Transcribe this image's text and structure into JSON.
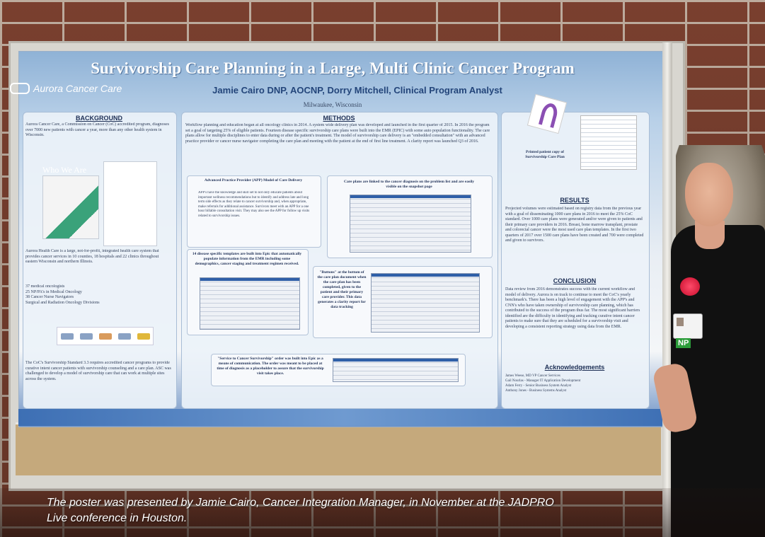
{
  "poster": {
    "title": "Survivorship Care Planning in a Large, Multi Clinic Cancer Program",
    "logo": "Aurora Cancer Care",
    "authors": "Jamie Cairo DNP, AOCNP, Dorry Mitchell, Clinical Program Analyst",
    "location": "Milwaukee, Wisconsin",
    "background": {
      "heading": "BACKGROUND",
      "intro": "Aurora Cancer Care, a Commission on Cancer (CoC) accredited program, diagnoses over 7000 new patients with cancer a year, more than any other health system in Wisconsin.",
      "who_we_are": "Who We Are",
      "health_care": "Aurora Health Care is a large, not-for-profit, integrated health care system that provides cancer services in 10 counties, 18 hospitals and 22 clinics throughout eastern Wisconsin and northern Illinois.",
      "bullets": [
        "37 medical oncologists",
        "25 NP/PA's in Medical Oncology",
        "38 Cancer Nurse Navigators",
        "Surgical and Radiation Oncology Divisions"
      ],
      "standard": "The CoC's Survivorship Standard 3.3 requires accredited cancer programs to provide curative intent cancer patients with survivorship counseling and a care plan. ASC was challenged to develop a model of survivorship care that can work at multiple sites across the system."
    },
    "methods": {
      "heading": "METHODS",
      "body": "Workflow planning and education began at all oncology clinics in 2014. A system wide delivery plan was developed and launched in the first quarter of 2015. In 2016 the program set a goal of targeting 25% of eligible patients. Fourteen disease specific survivorship care plans were built into the EMR (EPIC) with some auto population functionality. The care plans allow for multiple disciplines to enter data during or after the patient's treatment. The model of survivorship care delivery is an \"embedded consultation\" with an advanced practice provider or cancer nurse navigator completing the care plan and meeting with the patient at the end of first line treatment. A clarity report was launched Q3 of 2016.",
      "app_title": "Advanced Practice Provider (APP) Model of Care Delivery",
      "app_text": "APP's have the knowledge and skill set to not only educate patients about important wellness recommendations but to identify and address late and long term side effects as they relate to cancer survivorship and, when appropriate, make referrals for additional assistance. Survivors meet with an APP for a one hour billable consultation visit. They may also see the APP for follow up visits related to survivorship issues.",
      "diagnosis_box": "Care plans are linked to the cancer diagnosis on the problem list and are easily visible on the snapshot page",
      "templates_box": "14 disease specific templates are built into Epic that automatically populate information from the EMR including some demographics, cancer staging and treatment regimen received.",
      "buttons_box": "\"Buttons\" at the bottom of the care plan document when the care plan has been completed, given to the patient and their primary care provider. This data generates a clarity report for data tracking",
      "order_box": "\"Service to Cancer Survivorship\" order was built into Epic as a means of communication. The order was meant to be placed at time of diagnosis as a placeholder to assure that the survivorship visit takes place."
    },
    "printed_copy": "Printed patient copy of Survivorship Care Plan",
    "results": {
      "heading": "RESULTS",
      "body": "Projected volumes were estimated based on registry data from the previous year with a goal of disseminating 1000 care plans in 2016 to meet the 25% CoC standard. Over 1000 care plans were generated and/or were given to patients and their primary care providers in 2016. Breast, bone marrow transplant, prostate and colorectal cancer were the most used care plan templates. In the first two quarters of 2017 over 1500 care plans have been created and 700 were completed and given to survivors."
    },
    "conclusion": {
      "heading": "CONCLUSION",
      "body": "Data review from 2016 demonstrates success with the current workflow and model of delivery. Aurora is on track to continue to meet the CoC's yearly benchmark's. There has been a high level of engagement with the APP's and CNN's who have taken ownership of survivorship care planning, which has contributed to the success of the program thus far. The most significant barriers identified are the difficulty in identifying and tracking curative intent cancer patients to make sure that they are scheduled for a survivorship visit and developing a consistent reporting strategy using data from the EMR."
    },
    "acknowledgements": {
      "heading": "Acknowledgements",
      "names": [
        "James Weese, MD VP Cancer Services",
        "Gail Nourlas - Manager IT Application Development",
        "Adam Ferry - Senior Business System Analyst",
        "Anthony Jones - Business Systems Analyst"
      ]
    }
  },
  "badge_label": "NP",
  "caption": "The poster was presented by Jamie Cairo, Cancer Integration Manager, in November at the JADPRO Live conference in Houston."
}
